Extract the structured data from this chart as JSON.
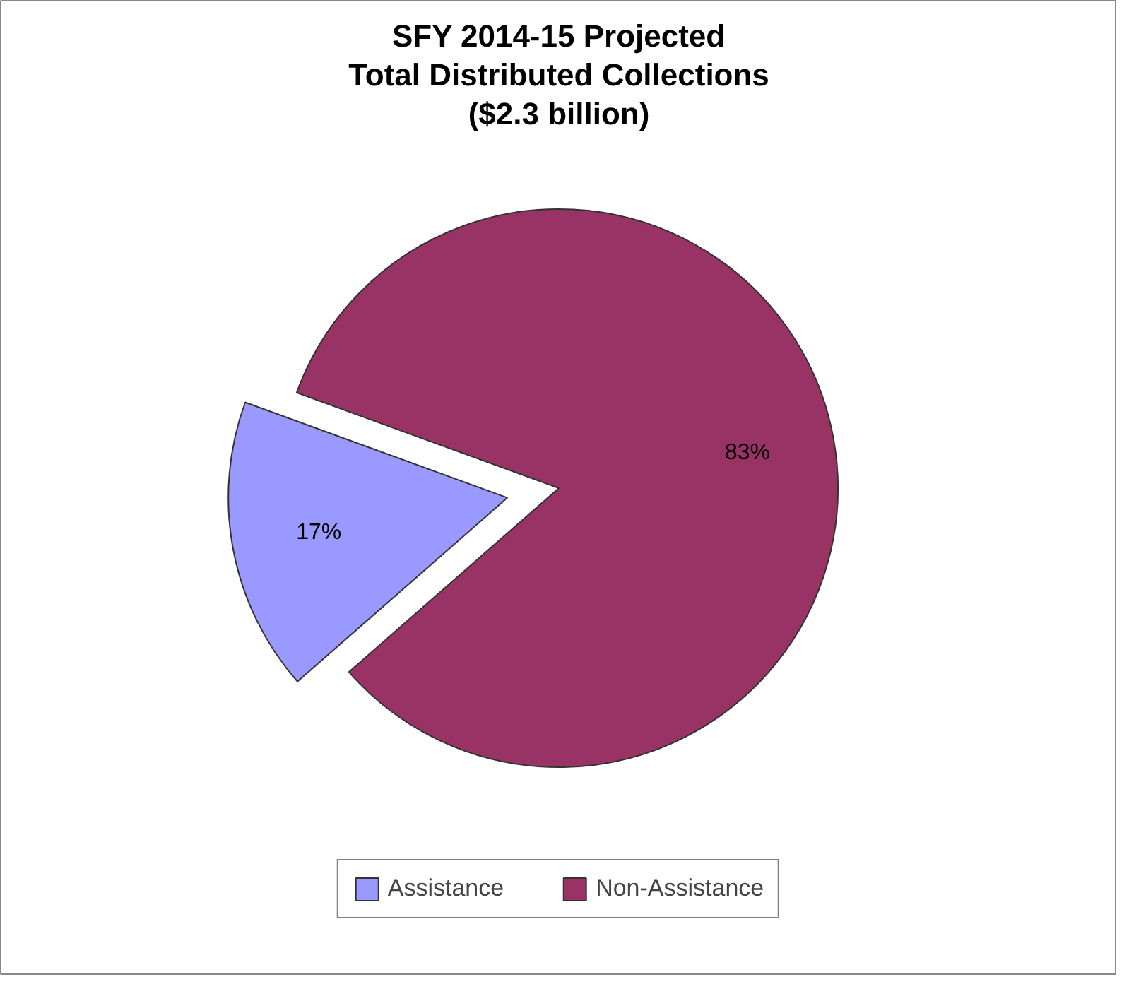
{
  "chart_data": {
    "type": "pie",
    "title": "SFY 2014-15 Projected\nTotal Distributed Collections\n($2.3 billion)",
    "categories": [
      "Assistance",
      "Non-Assistance"
    ],
    "values": [
      17,
      83
    ],
    "value_labels": [
      "17%",
      "83%"
    ],
    "colors": [
      "#9999ff",
      "#993366"
    ],
    "legend": "bottom"
  }
}
